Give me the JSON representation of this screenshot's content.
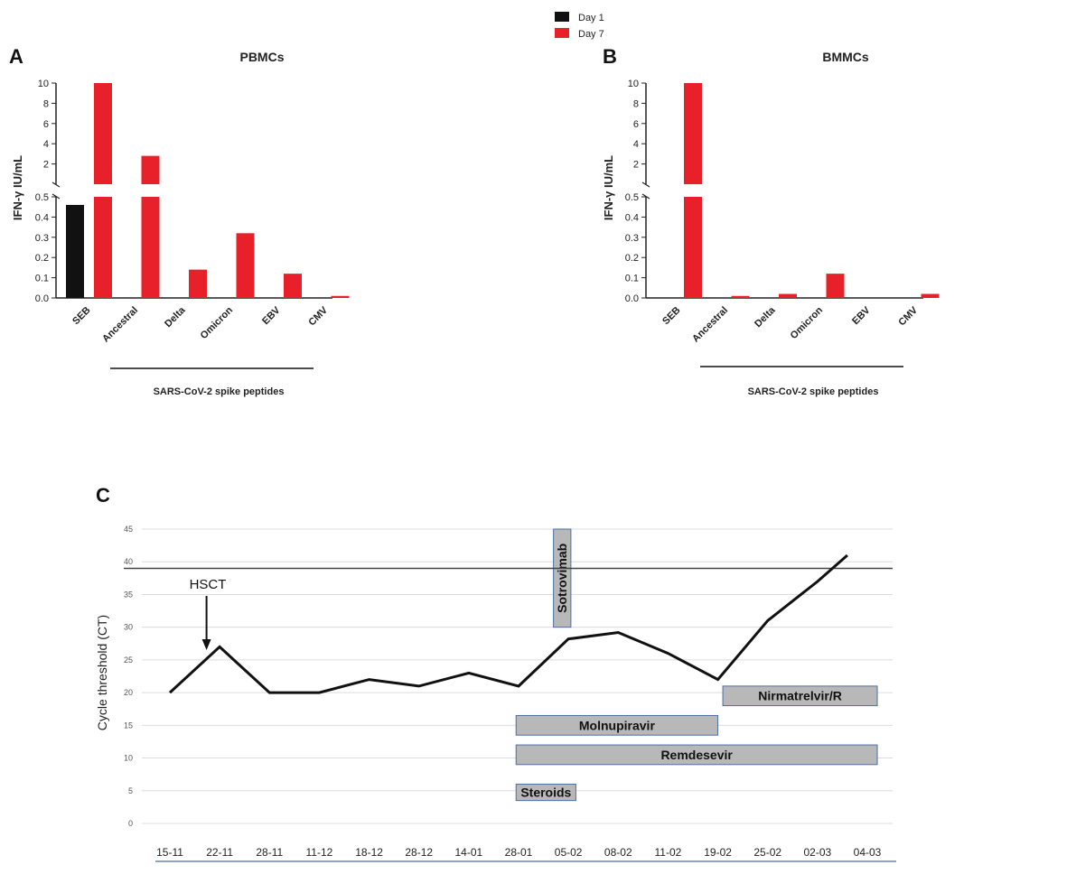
{
  "legend": {
    "items": [
      {
        "label": "Day 1",
        "color": "#111111"
      },
      {
        "label": "Day 7",
        "color": "#e8202a"
      }
    ]
  },
  "colors": {
    "day1": "#111111",
    "day7": "#e8202a",
    "drug_box": "#b8b8b8",
    "drug_border": "#4a6fa5"
  },
  "chart_data": [
    {
      "panel": "A",
      "type": "bar",
      "title": "PBMCs",
      "ylabel": "IFN-γ IU/mL",
      "categories": [
        "SEB",
        "Ancestral",
        "Delta",
        "Omicron",
        "EBV",
        "CMV"
      ],
      "group_label": "SARS-CoV-2 spike peptides",
      "y_lower_ticks": [
        "0.0",
        "0.1",
        "0.2",
        "0.3",
        "0.4",
        "0.5"
      ],
      "y_upper_ticks": [
        "2",
        "4",
        "6",
        "8",
        "10"
      ],
      "ylim_lower": [
        0,
        0.5
      ],
      "ylim_upper": [
        0,
        10
      ],
      "series": [
        {
          "name": "Day 1",
          "values": [
            0.46,
            0,
            0,
            0,
            0,
            0
          ]
        },
        {
          "name": "Day 7",
          "values": [
            10,
            2.8,
            0.14,
            0.32,
            0.12,
            0.01
          ]
        }
      ]
    },
    {
      "panel": "B",
      "type": "bar",
      "title": "BMMCs",
      "ylabel": "IFN-γ IU/mL",
      "categories": [
        "SEB",
        "Ancestral",
        "Delta",
        "Omicron",
        "EBV",
        "CMV"
      ],
      "group_label": "SARS-CoV-2 spike peptides",
      "y_lower_ticks": [
        "0.0",
        "0.1",
        "0.2",
        "0.3",
        "0.4",
        "0.5"
      ],
      "y_upper_ticks": [
        "2",
        "4",
        "6",
        "8",
        "10"
      ],
      "ylim_lower": [
        0,
        0.5
      ],
      "ylim_upper": [
        0,
        10
      ],
      "series": [
        {
          "name": "Day 1",
          "values": [
            0,
            0,
            0,
            0,
            0,
            0
          ]
        },
        {
          "name": "Day 7",
          "values": [
            10,
            0.01,
            0.02,
            0.12,
            0,
            0.02
          ]
        }
      ]
    },
    {
      "panel": "C",
      "type": "line",
      "ylabel": "Cycle threshold (CT)",
      "x": [
        "15-11",
        "22-11",
        "28-11",
        "11-12",
        "18-12",
        "28-12",
        "14-01",
        "28-01",
        "05-02",
        "08-02",
        "11-02",
        "19-02",
        "25-02",
        "02-03",
        "04-03"
      ],
      "y_points": [
        [
          0,
          20
        ],
        [
          1,
          27
        ],
        [
          2,
          20
        ],
        [
          3,
          20
        ],
        [
          4,
          22
        ],
        [
          5,
          21
        ],
        [
          6,
          23
        ],
        [
          7,
          21
        ],
        [
          8,
          28.2
        ],
        [
          9,
          29.2
        ],
        [
          10,
          26
        ],
        [
          11,
          22
        ],
        [
          12,
          31
        ],
        [
          13,
          37
        ],
        [
          13.6,
          41
        ]
      ],
      "ylim": [
        0,
        45
      ],
      "y_ticks": [
        "0",
        "5",
        "10",
        "15",
        "20",
        "25",
        "30",
        "35",
        "40",
        "45"
      ],
      "threshold": 39,
      "annotation": {
        "label": "HSCT",
        "x": 0.7
      },
      "treatments": [
        {
          "label": "Sotrovimab",
          "x_start": 7.7,
          "x_end": 8.05,
          "y_low": 30,
          "y_high": 45,
          "vertical": true
        },
        {
          "label": "Nirmatrelvir/R",
          "x_start": 11.1,
          "x_end": 14.2,
          "y_low": 18,
          "y_high": 21
        },
        {
          "label": "Molnupiravir",
          "x_start": 6.95,
          "x_end": 11.0,
          "y_low": 13.5,
          "y_high": 16.5
        },
        {
          "label": "Remdesevir",
          "x_start": 6.95,
          "x_end": 14.2,
          "y_low": 9,
          "y_high": 12
        },
        {
          "label": "Steroids",
          "x_start": 6.95,
          "x_end": 8.15,
          "y_low": 3.5,
          "y_high": 6
        }
      ]
    }
  ]
}
